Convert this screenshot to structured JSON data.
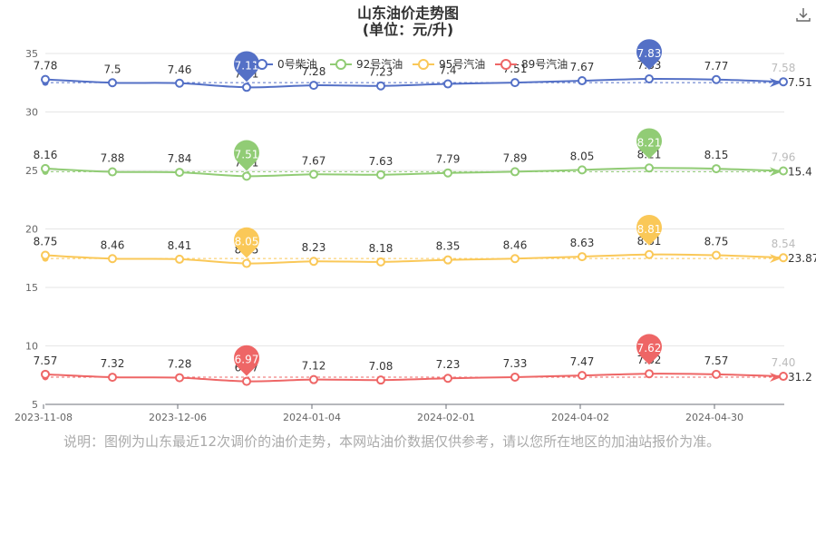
{
  "toolbar": {
    "download_icon": "download-icon"
  },
  "note": "说明：图例为山东最近12次调价的油价走势，本网站油价数据仅供参考，请以您所在地区的加油站报价为准。",
  "chart_data": {
    "type": "line",
    "title": "山东油价走势图",
    "subtitle": "(单位：元/升)",
    "x_ticks": [
      "2023-11-08",
      "2023-12-06",
      "2024-01-04",
      "2024-02-01",
      "2024-04-02",
      "2024-04-30"
    ],
    "y_ticks": [
      "5",
      "10",
      "15",
      "20",
      "25",
      "30",
      "35"
    ],
    "ylim": [
      5,
      35
    ],
    "legend_position": "top-center",
    "series": [
      {
        "name": "0号柴油",
        "color": "#5470c6",
        "values": [
          7.78,
          7.5,
          7.46,
          7.11,
          7.28,
          7.23,
          7.4,
          7.51,
          7.67,
          7.83,
          7.77,
          7.58
        ],
        "labels": [
          "7.78",
          "7.5",
          "7.46",
          "7.11",
          "7.28",
          "7.23",
          "7.4",
          "7.51",
          "7.67",
          "7.83",
          "7.77",
          "7.58"
        ],
        "max_pin": "7.83",
        "min_pin": "7.11",
        "average": "7.51"
      },
      {
        "name": "92号汽油",
        "color": "#91cc75",
        "values": [
          8.16,
          7.88,
          7.84,
          7.51,
          7.67,
          7.63,
          7.79,
          7.89,
          8.05,
          8.21,
          8.15,
          7.96
        ],
        "labels": [
          "8.16",
          "7.88",
          "7.84",
          "7.51",
          "7.67",
          "7.63",
          "7.79",
          "7.89",
          "8.05",
          "8.21",
          "8.15",
          "7.96"
        ],
        "max_pin": "8.21",
        "min_pin": "7.51",
        "average": "15.4"
      },
      {
        "name": "95号汽油",
        "color": "#fac858",
        "values": [
          8.75,
          8.46,
          8.41,
          8.05,
          8.23,
          8.18,
          8.35,
          8.46,
          8.63,
          8.81,
          8.75,
          8.54
        ],
        "labels": [
          "8.75",
          "8.46",
          "8.41",
          "8.05",
          "8.23",
          "8.18",
          "8.35",
          "8.46",
          "8.63",
          "8.81",
          "8.75",
          "8.54"
        ],
        "max_pin": "8.81",
        "min_pin": "8.05",
        "average": "23.87"
      },
      {
        "name": "89号汽油",
        "color": "#ee6666",
        "values": [
          7.57,
          7.32,
          7.28,
          6.97,
          7.12,
          7.08,
          7.23,
          7.33,
          7.47,
          7.62,
          7.57,
          7.4
        ],
        "labels": [
          "7.57",
          "7.32",
          "7.28",
          "6.97",
          "7.12",
          "7.08",
          "7.23",
          "7.33",
          "7.47",
          "7.62",
          "7.57",
          "7.40"
        ],
        "max_pin": "7.62",
        "min_pin": "6.97",
        "average": "31.2"
      }
    ]
  }
}
